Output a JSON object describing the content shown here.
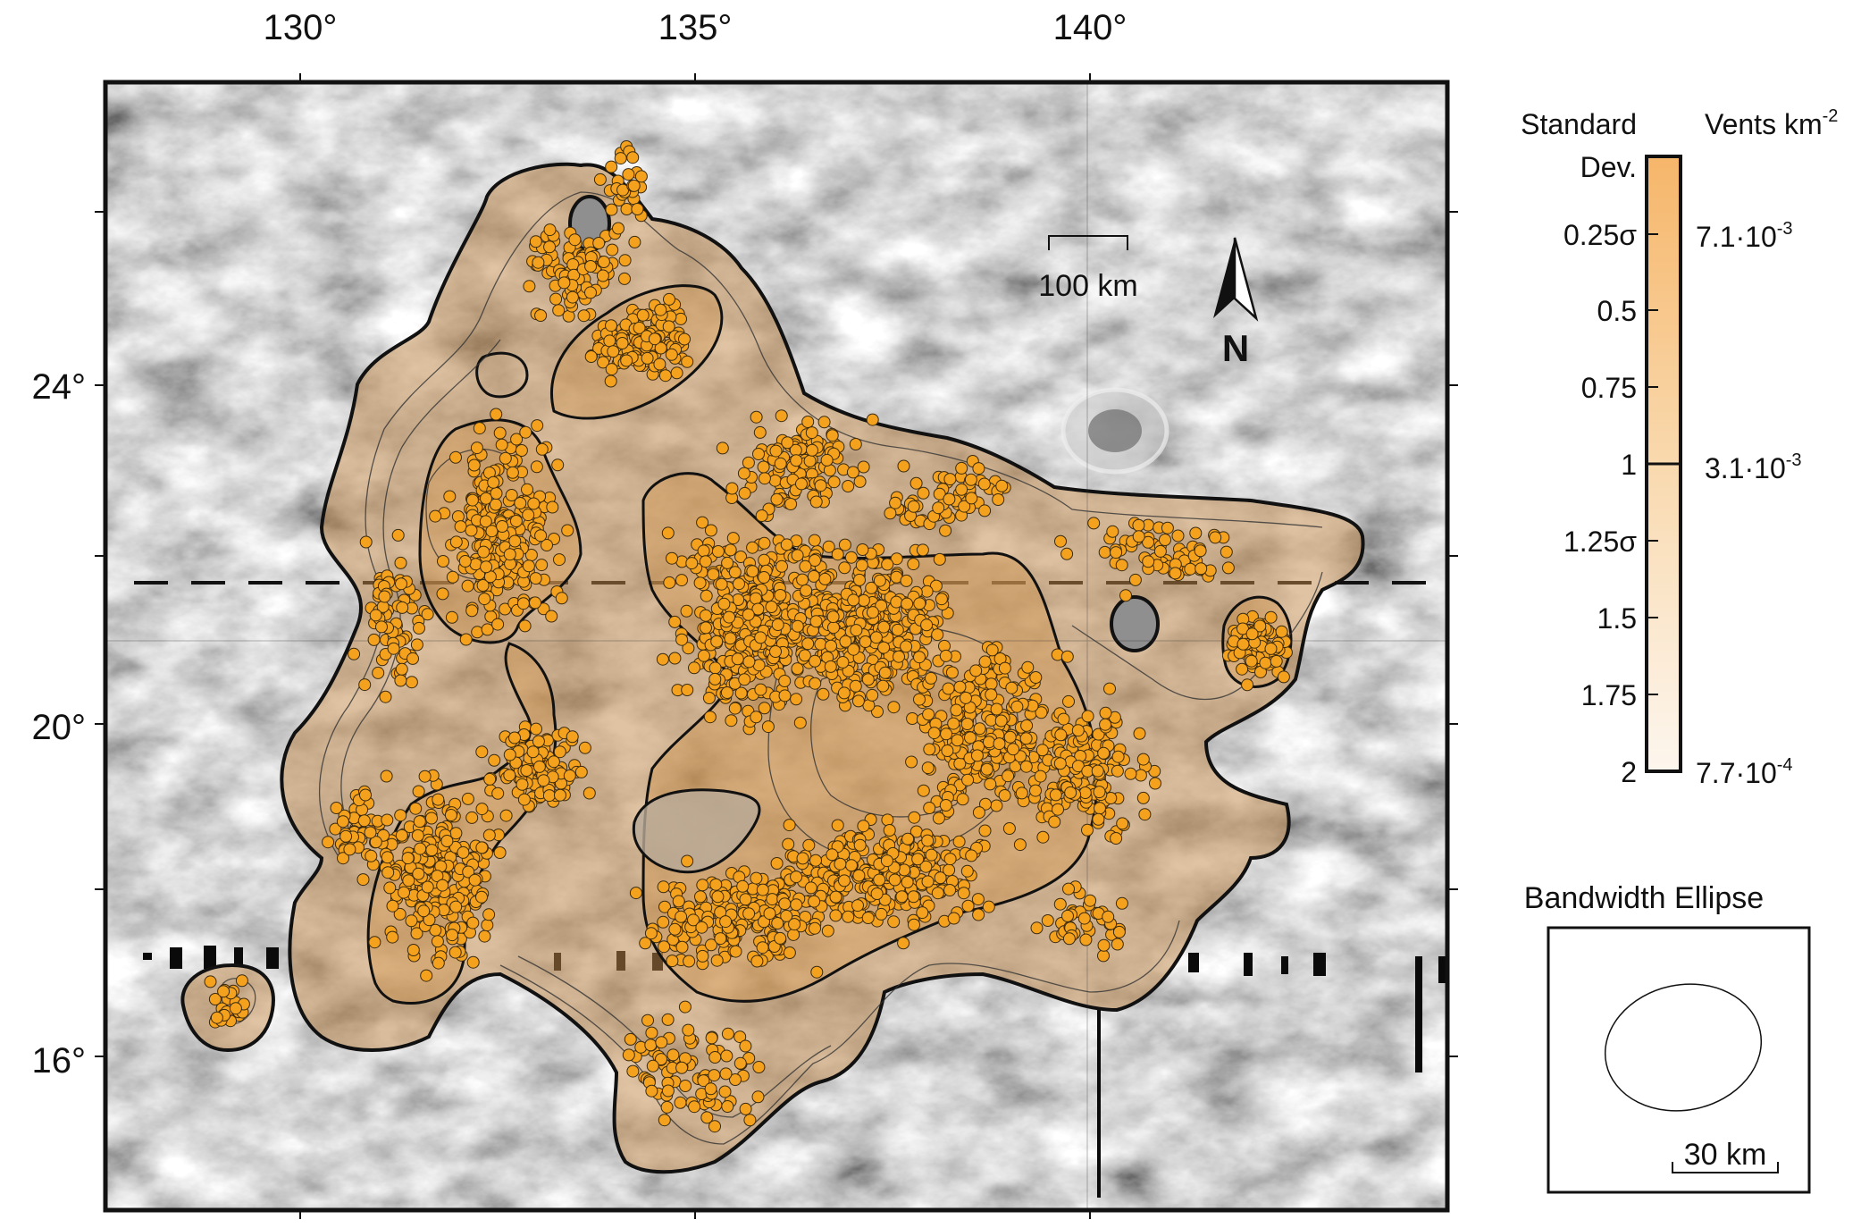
{
  "map": {
    "longitude_labels": [
      "130°",
      "135°",
      "140°"
    ],
    "latitude_labels": [
      "24°",
      "20°",
      "16°"
    ],
    "scale_bar_label": "100 km",
    "north_label": "N",
    "colors": {
      "vent": "#f4a21e",
      "vent_outline": "#3a2a10",
      "density_high": "#f6b66a",
      "density_low": "#fdf6ee",
      "contour": "#111111",
      "frame": "#111111"
    },
    "vent_count_drawn": "approx. 3000"
  },
  "legend": {
    "std_title_line1": "Standard",
    "std_title_line2": "Dev.",
    "density_title": "Vents km",
    "density_title_exp": "-2",
    "std_ticks": [
      "0.25σ",
      "0.5",
      "0.75",
      "1",
      "1.25σ",
      "1.5",
      "1.75",
      "2"
    ],
    "density_labels": [
      {
        "mantissa": "7.1·10",
        "exp": "-3"
      },
      {
        "mantissa": "3.1·10",
        "exp": "-3"
      },
      {
        "mantissa": "7.7·10",
        "exp": "-4"
      }
    ]
  },
  "bandwidth": {
    "title": "Bandwidth Ellipse",
    "scale_label": "30 km"
  }
}
